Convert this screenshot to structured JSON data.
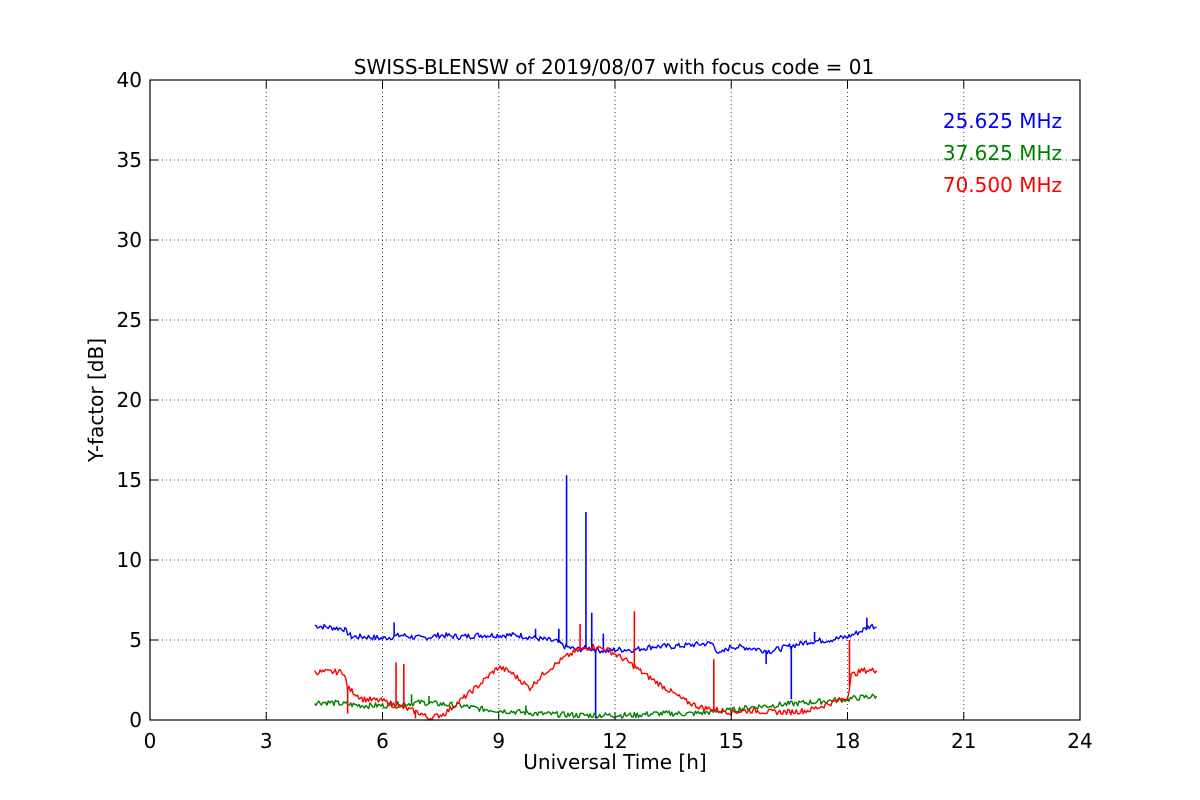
{
  "chart_data": {
    "type": "line",
    "title": "SWISS-BLENSW of 2019/08/07 with focus code = 01",
    "xlabel": "Universal Time [h]",
    "ylabel": "Y-factor [dB]",
    "xlim": [
      0,
      24
    ],
    "ylim": [
      0,
      40
    ],
    "xticks": [
      0,
      3,
      6,
      9,
      12,
      15,
      18,
      21,
      24
    ],
    "yticks": [
      0,
      5,
      10,
      15,
      20,
      25,
      30,
      35,
      40
    ],
    "grid": true,
    "legend_position": "top-right",
    "series": [
      {
        "name": "25.625 MHz",
        "color": "#0000ff",
        "x": [
          4.25,
          4.6,
          5.0,
          5.2,
          5.6,
          6.0,
          6.5,
          7.0,
          7.5,
          8.0,
          8.5,
          9.0,
          9.5,
          10.0,
          10.5,
          10.7,
          11.0,
          11.3,
          11.5,
          11.8,
          12.0,
          12.5,
          13.0,
          13.5,
          14.0,
          14.5,
          14.7,
          15.0,
          15.5,
          16.0,
          16.5,
          17.0,
          17.5,
          18.0,
          18.3,
          18.6,
          18.75
        ],
        "y": [
          5.9,
          5.8,
          5.7,
          5.2,
          5.2,
          5.1,
          5.3,
          5.1,
          5.3,
          5.2,
          5.3,
          5.3,
          5.3,
          5.1,
          4.9,
          4.6,
          4.4,
          4.5,
          4.4,
          4.3,
          4.4,
          4.4,
          4.6,
          4.6,
          4.7,
          4.8,
          4.1,
          4.6,
          4.5,
          4.3,
          4.6,
          4.9,
          5.0,
          5.2,
          5.5,
          5.9,
          5.8
        ],
        "spikes": [
          {
            "x": 6.3,
            "y": 6.1
          },
          {
            "x": 9.95,
            "y": 5.7
          },
          {
            "x": 10.55,
            "y": 5.7
          },
          {
            "x": 10.75,
            "y": 15.3
          },
          {
            "x": 11.25,
            "y": 13.0
          },
          {
            "x": 11.4,
            "y": 6.7
          },
          {
            "x": 11.5,
            "y": 0.1
          },
          {
            "x": 11.7,
            "y": 5.4
          },
          {
            "x": 15.9,
            "y": 3.5
          },
          {
            "x": 16.55,
            "y": 1.3
          },
          {
            "x": 17.15,
            "y": 5.5
          },
          {
            "x": 18.5,
            "y": 6.4
          }
        ]
      },
      {
        "name": "37.625 MHz",
        "color": "#008000",
        "x": [
          4.25,
          4.6,
          5.0,
          5.5,
          6.0,
          6.5,
          7.0,
          7.5,
          8.0,
          8.5,
          9.0,
          9.5,
          10.0,
          10.5,
          11.0,
          11.5,
          12.0,
          12.5,
          13.0,
          13.5,
          14.0,
          14.5,
          15.0,
          15.5,
          16.0,
          16.5,
          17.0,
          17.5,
          18.0,
          18.3,
          18.75
        ],
        "y": [
          1.1,
          1.1,
          1.0,
          0.9,
          0.9,
          1.0,
          1.1,
          1.0,
          0.9,
          0.7,
          0.6,
          0.5,
          0.4,
          0.35,
          0.3,
          0.3,
          0.3,
          0.3,
          0.4,
          0.4,
          0.4,
          0.5,
          0.6,
          0.8,
          0.9,
          1.0,
          1.1,
          1.2,
          1.3,
          1.4,
          1.5
        ],
        "spikes": [
          {
            "x": 6.75,
            "y": 1.6
          },
          {
            "x": 7.2,
            "y": 1.5
          },
          {
            "x": 9.7,
            "y": 0.9
          }
        ]
      },
      {
        "name": "70.500 MHz",
        "color": "#ff0000",
        "x": [
          4.25,
          4.6,
          5.0,
          5.1,
          5.5,
          6.0,
          6.5,
          7.0,
          7.2,
          7.6,
          8.0,
          8.5,
          8.8,
          9.0,
          9.3,
          9.8,
          10.2,
          10.7,
          11.0,
          11.4,
          11.8,
          12.3,
          12.8,
          13.3,
          13.8,
          14.2,
          14.7,
          15.0,
          15.5,
          16.0,
          16.5,
          17.0,
          17.5,
          18.0,
          18.1,
          18.4,
          18.75
        ],
        "y": [
          3.0,
          3.0,
          3.0,
          2.0,
          1.3,
          1.2,
          0.8,
          0.4,
          0.1,
          0.4,
          1.2,
          2.2,
          2.9,
          3.3,
          3.0,
          2.0,
          3.0,
          3.9,
          4.3,
          4.6,
          4.4,
          3.7,
          2.8,
          2.0,
          1.2,
          0.8,
          0.6,
          0.5,
          0.6,
          0.5,
          0.5,
          0.6,
          1.0,
          1.4,
          2.8,
          3.1,
          3.1
        ],
        "spikes": [
          {
            "x": 5.1,
            "y": 0.4
          },
          {
            "x": 6.35,
            "y": 3.6
          },
          {
            "x": 6.55,
            "y": 3.5
          },
          {
            "x": 6.85,
            "y": 0.1
          },
          {
            "x": 11.1,
            "y": 6.0
          },
          {
            "x": 12.5,
            "y": 6.8
          },
          {
            "x": 14.55,
            "y": 3.8
          },
          {
            "x": 18.05,
            "y": 5.0
          }
        ]
      }
    ]
  }
}
